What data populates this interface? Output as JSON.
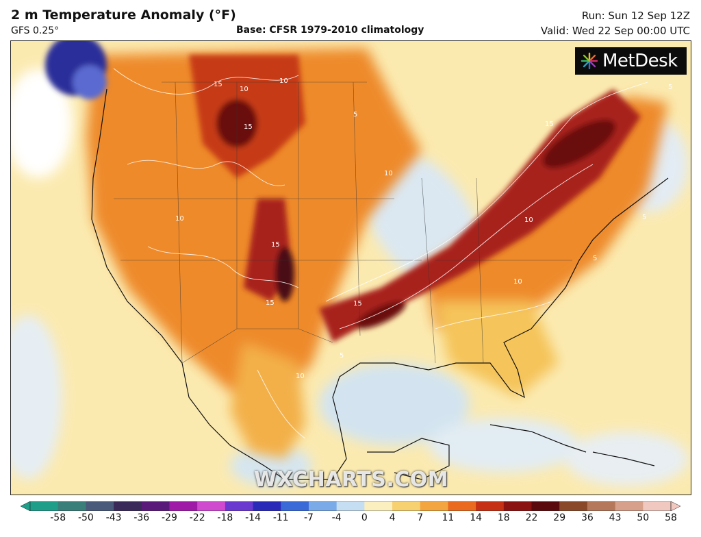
{
  "header": {
    "title": "2 m Temperature Anomaly (°F)",
    "model": "GFS 0.25°",
    "base": "Base: CFSR 1979-2010 climatology",
    "run": "Run: Sun 12 Sep 12Z",
    "valid": "Valid: Wed 22 Sep 00:00 UTC"
  },
  "logo": {
    "text": "MetDesk"
  },
  "watermark": "WXCHARTS.COM",
  "contour_labels": [
    "15",
    "10",
    "5"
  ],
  "colors": {
    "cold_extreme": "#2a2f9a",
    "near_zero": "#d7e6f2",
    "warm_low": "#f7d36a",
    "warm_mid": "#ee8a2a",
    "warm_high": "#b22a16",
    "warm_max": "#4a0a12"
  },
  "color_scale": {
    "ticks": [
      "-58",
      "-50",
      "-43",
      "-36",
      "-29",
      "-22",
      "-18",
      "-14",
      "-11",
      "-7",
      "-4",
      "0",
      "4",
      "7",
      "11",
      "14",
      "18",
      "22",
      "29",
      "36",
      "43",
      "50",
      "58"
    ],
    "colors": [
      "#1f9e8a",
      "#3b7f7a",
      "#4a5a7a",
      "#3a2a5a",
      "#5a1a7a",
      "#a01aa8",
      "#d04ad0",
      "#6a3ad0",
      "#2a2ab8",
      "#3a6ad8",
      "#7aaae8",
      "#c6def2",
      "#fbefc0",
      "#f7d070",
      "#f3a640",
      "#ea6a20",
      "#c63014",
      "#8a1210",
      "#5a0a0c",
      "#8a4a2a",
      "#b6785a",
      "#d6a08a",
      "#f0c8c0"
    ]
  }
}
